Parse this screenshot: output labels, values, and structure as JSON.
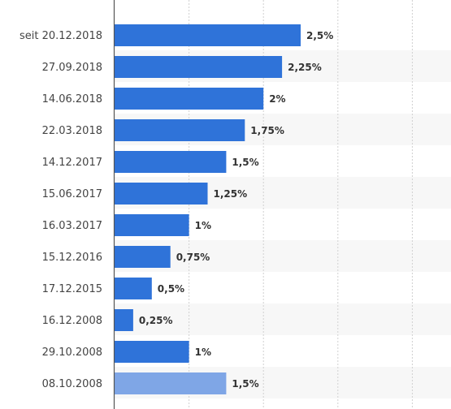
{
  "chart_data": {
    "type": "bar",
    "orientation": "horizontal",
    "title": "",
    "xlabel": "",
    "ylabel": "",
    "xlim": [
      0,
      4.5
    ],
    "grid": true,
    "legend": "none",
    "colors": {
      "bar": "#2f73d9",
      "bar_faded": "#7fa6e6",
      "band": "#f7f7f7",
      "grid": "#d0d0d0",
      "axis": "#555555",
      "label": "#444444",
      "label_faded": "#888888",
      "value_text": "#333333"
    },
    "bars": [
      {
        "category": "seit 20.12.2018",
        "value": 2.5,
        "label": "2,5%"
      },
      {
        "category": "27.09.2018",
        "value": 2.25,
        "label": "2,25%"
      },
      {
        "category": "14.06.2018",
        "value": 2.0,
        "label": "2%"
      },
      {
        "category": "22.03.2018",
        "value": 1.75,
        "label": "1,75%"
      },
      {
        "category": "14.12.2017",
        "value": 1.5,
        "label": "1,5%"
      },
      {
        "category": "15.06.2017",
        "value": 1.25,
        "label": "1,25%"
      },
      {
        "category": "16.03.2017",
        "value": 1.0,
        "label": "1%"
      },
      {
        "category": "15.12.2016",
        "value": 0.75,
        "label": "0,75%"
      },
      {
        "category": "17.12.2015",
        "value": 0.5,
        "label": "0,5%"
      },
      {
        "category": "16.12.2008",
        "value": 0.25,
        "label": "0,25%"
      },
      {
        "category": "29.10.2008",
        "value": 1.0,
        "label": "1%"
      },
      {
        "category": "08.10.2008",
        "value": 1.5,
        "label": "1,5%",
        "faded": true
      }
    ]
  }
}
